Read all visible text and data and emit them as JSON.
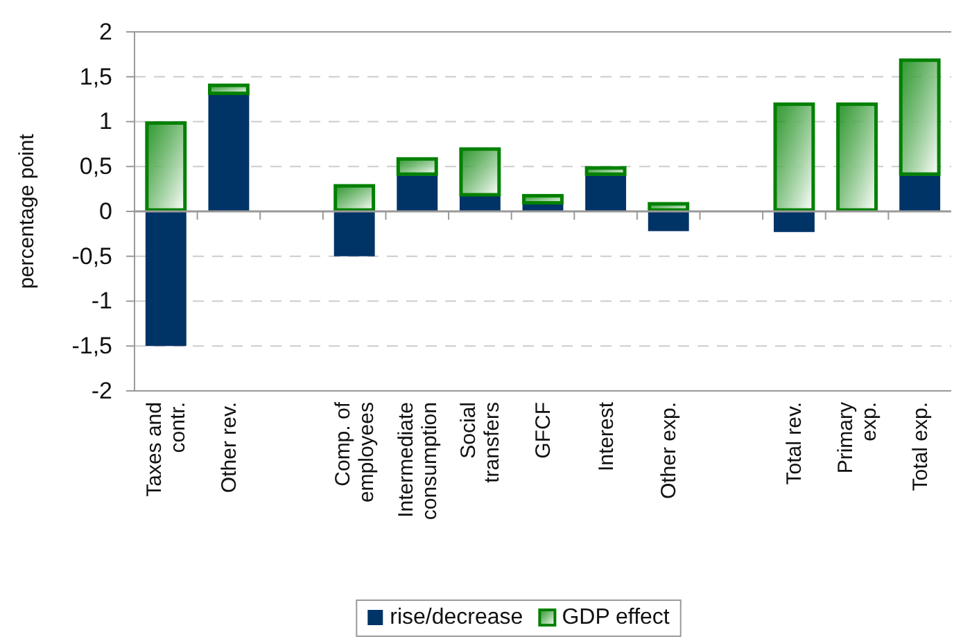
{
  "chart_data": {
    "type": "bar",
    "stacked": true,
    "ylabel": "percentage point",
    "categories": [
      "Taxes and contr.",
      "Other rev.",
      null,
      "Comp. of employees",
      "Intermediate consumption",
      "Social transfers",
      "GFCF",
      "Interest",
      "Other exp.",
      null,
      "Total rev.",
      "Primary exp.",
      "Total exp."
    ],
    "series": [
      {
        "name": "rise/decrease",
        "color": "#003366",
        "values": [
          -1.5,
          1.3,
          null,
          -0.5,
          0.4,
          0.17,
          0.08,
          0.4,
          -0.22,
          null,
          -0.23,
          0,
          0.4
        ]
      },
      {
        "name": "GDP effect",
        "color": "#008000",
        "values": [
          1.0,
          0.12,
          null,
          0.3,
          0.2,
          0.54,
          0.11,
          0.1,
          0.1,
          null,
          1.21,
          1.21,
          1.3
        ]
      }
    ],
    "ylim": [
      -2,
      2
    ],
    "yticks": [
      -2,
      {
        "value": -1.5,
        "label": "-1,5"
      },
      -1,
      {
        "value": -0.5,
        "label": "-0,5"
      },
      0,
      {
        "value": 0.5,
        "label": "0,5"
      },
      1,
      {
        "value": 1.5,
        "label": "1,5"
      },
      2
    ],
    "grid": "y",
    "legend": "bottom"
  }
}
